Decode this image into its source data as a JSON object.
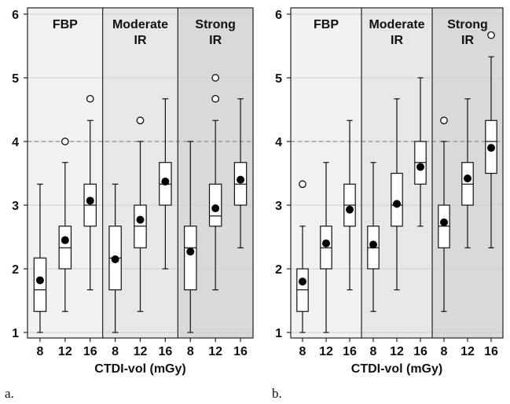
{
  "chart_data": [
    {
      "type": "box",
      "panel_label": "a.",
      "xlabel": "CTDI-vol (mGy)",
      "ylabel": "",
      "ylim": [
        0.9,
        6.1
      ],
      "yticks": [
        1,
        2,
        3,
        4,
        5,
        6
      ],
      "reference_line": 4,
      "groups": [
        {
          "name": "FBP",
          "shade": "#f1f1f1"
        },
        {
          "name": "Moderate IR",
          "shade": "#e7e7e7"
        },
        {
          "name": "Strong IR",
          "shade": "#d9d9d9"
        }
      ],
      "categories": [
        "8",
        "12",
        "16"
      ],
      "boxes": [
        {
          "group": "FBP",
          "x": "8",
          "min": 1.0,
          "q1": 1.33,
          "median": 1.67,
          "q3": 2.17,
          "max": 3.33,
          "mean": 1.82,
          "outliers": []
        },
        {
          "group": "FBP",
          "x": "12",
          "min": 1.33,
          "q1": 2.0,
          "median": 2.33,
          "q3": 2.67,
          "max": 3.67,
          "mean": 2.45,
          "outliers": [
            4.0
          ]
        },
        {
          "group": "FBP",
          "x": "16",
          "min": 1.67,
          "q1": 2.67,
          "median": 3.0,
          "q3": 3.33,
          "max": 4.33,
          "mean": 3.07,
          "outliers": [
            4.67
          ]
        },
        {
          "group": "Moderate IR",
          "x": "8",
          "min": 1.0,
          "q1": 1.67,
          "median": 2.17,
          "q3": 2.67,
          "max": 3.33,
          "mean": 2.15,
          "outliers": []
        },
        {
          "group": "Moderate IR",
          "x": "12",
          "min": 1.33,
          "q1": 2.33,
          "median": 2.67,
          "q3": 3.0,
          "max": 4.0,
          "mean": 2.77,
          "outliers": [
            4.33
          ]
        },
        {
          "group": "Moderate IR",
          "x": "16",
          "min": 2.0,
          "q1": 3.0,
          "median": 3.33,
          "q3": 3.67,
          "max": 4.67,
          "mean": 3.37,
          "outliers": []
        },
        {
          "group": "Strong IR",
          "x": "8",
          "min": 1.0,
          "q1": 1.67,
          "median": 2.33,
          "q3": 2.67,
          "max": 4.0,
          "mean": 2.27,
          "outliers": []
        },
        {
          "group": "Strong IR",
          "x": "12",
          "min": 1.67,
          "q1": 2.67,
          "median": 2.83,
          "q3": 3.33,
          "max": 4.33,
          "mean": 2.95,
          "outliers": [
            4.67,
            5.0
          ]
        },
        {
          "group": "Strong IR",
          "x": "16",
          "min": 2.33,
          "q1": 3.0,
          "median": 3.33,
          "q3": 3.67,
          "max": 4.67,
          "mean": 3.4,
          "outliers": []
        }
      ]
    },
    {
      "type": "box",
      "panel_label": "b.",
      "xlabel": "CTDI-vol (mGy)",
      "ylabel": "",
      "ylim": [
        0.9,
        6.1
      ],
      "yticks": [
        1,
        2,
        3,
        4,
        5,
        6
      ],
      "reference_line": 4,
      "groups": [
        {
          "name": "FBP",
          "shade": "#f1f1f1"
        },
        {
          "name": "Moderate IR",
          "shade": "#e7e7e7"
        },
        {
          "name": "Strong IR",
          "shade": "#d9d9d9"
        }
      ],
      "categories": [
        "8",
        "12",
        "16"
      ],
      "boxes": [
        {
          "group": "FBP",
          "x": "8",
          "min": 1.0,
          "q1": 1.33,
          "median": 1.67,
          "q3": 2.0,
          "max": 2.67,
          "mean": 1.8,
          "outliers": [
            3.33
          ]
        },
        {
          "group": "FBP",
          "x": "12",
          "min": 1.0,
          "q1": 2.0,
          "median": 2.33,
          "q3": 2.67,
          "max": 3.67,
          "mean": 2.4,
          "outliers": []
        },
        {
          "group": "FBP",
          "x": "16",
          "min": 1.67,
          "q1": 2.67,
          "median": 3.0,
          "q3": 3.33,
          "max": 4.33,
          "mean": 2.93,
          "outliers": []
        },
        {
          "group": "Moderate IR",
          "x": "8",
          "min": 1.33,
          "q1": 2.0,
          "median": 2.33,
          "q3": 2.67,
          "max": 3.67,
          "mean": 2.38,
          "outliers": []
        },
        {
          "group": "Moderate IR",
          "x": "12",
          "min": 1.67,
          "q1": 2.67,
          "median": 3.0,
          "q3": 3.5,
          "max": 4.67,
          "mean": 3.02,
          "outliers": []
        },
        {
          "group": "Moderate IR",
          "x": "16",
          "min": 2.67,
          "q1": 3.33,
          "median": 3.67,
          "q3": 4.0,
          "max": 5.0,
          "mean": 3.6,
          "outliers": []
        },
        {
          "group": "Strong IR",
          "x": "8",
          "min": 1.33,
          "q1": 2.33,
          "median": 2.67,
          "q3": 3.0,
          "max": 4.0,
          "mean": 2.73,
          "outliers": [
            4.33
          ]
        },
        {
          "group": "Strong IR",
          "x": "12",
          "min": 2.33,
          "q1": 3.0,
          "median": 3.33,
          "q3": 3.67,
          "max": 4.67,
          "mean": 3.42,
          "outliers": []
        },
        {
          "group": "Strong IR",
          "x": "16",
          "min": 2.33,
          "q1": 3.5,
          "median": 4.0,
          "q3": 4.33,
          "max": 5.33,
          "mean": 3.9,
          "outliers": [
            5.67
          ]
        }
      ]
    }
  ]
}
